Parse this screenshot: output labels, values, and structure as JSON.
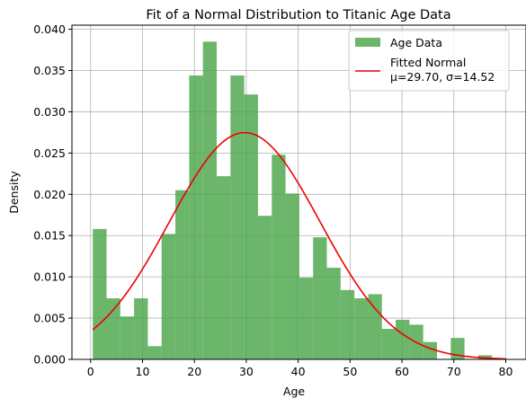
{
  "chart_data": {
    "type": "bar",
    "title": "Fit of a Normal Distribution to Titanic Age Data",
    "xlabel": "Age",
    "ylabel": "Density",
    "xlim": [
      -3.6,
      83.9
    ],
    "ylim": [
      0,
      0.0405
    ],
    "xticks": [
      0,
      10,
      20,
      30,
      40,
      50,
      60,
      70,
      80
    ],
    "yticks": [
      0.0,
      0.005,
      0.01,
      0.015,
      0.02,
      0.025,
      0.03,
      0.035,
      0.04
    ],
    "ytick_labels": [
      "0.000",
      "0.005",
      "0.010",
      "0.015",
      "0.020",
      "0.025",
      "0.030",
      "0.035",
      "0.040"
    ],
    "grid": true,
    "legend_position": "top-right",
    "histogram": {
      "name": "Age Data",
      "color": "#4aa64a",
      "bin_start": 0.42,
      "bin_width": 2.653,
      "values": [
        0.0158,
        0.0074,
        0.0052,
        0.0074,
        0.0016,
        0.0152,
        0.0205,
        0.0344,
        0.0385,
        0.0222,
        0.0344,
        0.0321,
        0.0174,
        0.0248,
        0.0201,
        0.0099,
        0.0148,
        0.0111,
        0.0084,
        0.0074,
        0.0079,
        0.0037,
        0.0048,
        0.0042,
        0.0021,
        0.0,
        0.0026,
        0.0,
        0.0005,
        0.0
      ]
    },
    "fit": {
      "name_line1": "Fitted Normal",
      "name_line2": "μ=29.70, σ=14.52",
      "mu": 29.7,
      "sigma": 14.52,
      "x_start": 0.42,
      "x_end": 80,
      "color": "#ee0000"
    }
  }
}
